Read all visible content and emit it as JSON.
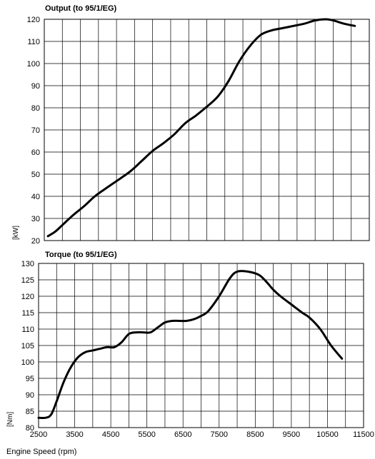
{
  "chart_data": [
    {
      "type": "line",
      "title": "Output (to 95/1/EG)",
      "ylabel": "[kW]",
      "xlabel": "",
      "xlim": [
        2500,
        11500
      ],
      "ylim": [
        20,
        120
      ],
      "y_ticks": [
        "20",
        "30",
        "40",
        "50",
        "60",
        "70",
        "80",
        "90",
        "100",
        "110",
        "120"
      ],
      "grid": true,
      "series": [
        {
          "x": [
            2600,
            2800,
            3000,
            3300,
            3600,
            3900,
            4200,
            4600,
            4900,
            5200,
            5500,
            5800,
            6100,
            6400,
            6700,
            7000,
            7300,
            7600,
            7900,
            8200,
            8500,
            8800,
            9100,
            9400,
            9700,
            10000,
            10300,
            10500,
            10800,
            11100
          ],
          "y": [
            22,
            24,
            27,
            31.5,
            35.5,
            40,
            43.5,
            48,
            51.5,
            56,
            60.5,
            64,
            68,
            73,
            76.5,
            80.5,
            85,
            92,
            101,
            108,
            113,
            115,
            116,
            117,
            118,
            119.5,
            120,
            119.5,
            118,
            117
          ]
        }
      ]
    },
    {
      "type": "line",
      "title": "Torque (to 95/1/EG)",
      "ylabel": "[Nm]",
      "xlabel": "Engine Speed (rpm)",
      "xlim": [
        2500,
        11500
      ],
      "ylim": [
        80,
        130
      ],
      "x_ticks": [
        "2500",
        "3500",
        "4500",
        "5500",
        "6500",
        "7500",
        "8500",
        "9500",
        "10500",
        "11500"
      ],
      "y_ticks": [
        "80",
        "85",
        "90",
        "95",
        "100",
        "105",
        "110",
        "115",
        "120",
        "125",
        "130"
      ],
      "grid": true,
      "series": [
        {
          "x": [
            2500,
            2700,
            2850,
            3000,
            3200,
            3400,
            3600,
            3800,
            4000,
            4200,
            4400,
            4600,
            4800,
            5000,
            5200,
            5400,
            5600,
            5800,
            6000,
            6200,
            6400,
            6600,
            6800,
            7000,
            7200,
            7500,
            7800,
            8000,
            8300,
            8600,
            8800,
            9000,
            9200,
            9500,
            9800,
            10000,
            10300,
            10600,
            10900
          ],
          "y": [
            83,
            83,
            84,
            88,
            94,
            98.5,
            101.5,
            103,
            103.5,
            104,
            104.5,
            104.5,
            106,
            108.5,
            109,
            109,
            109,
            110.5,
            112,
            112.5,
            112.5,
            112.5,
            113,
            114,
            115.5,
            120,
            125.5,
            127.5,
            127.5,
            126.5,
            124.5,
            122,
            120,
            117.5,
            115,
            113.5,
            110,
            105,
            101
          ]
        }
      ]
    }
  ]
}
